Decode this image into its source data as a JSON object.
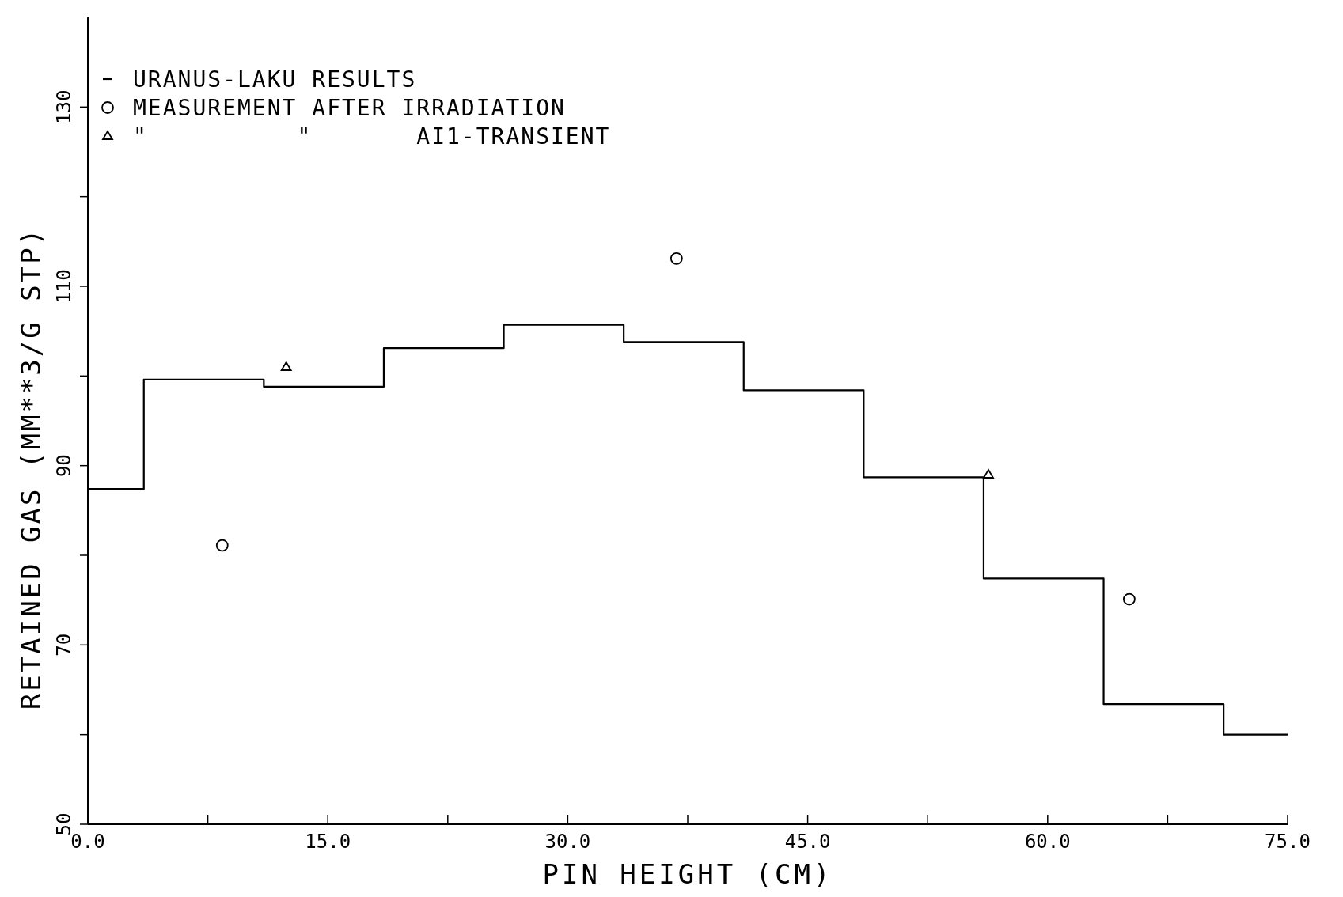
{
  "chart_data": {
    "type": "step",
    "xlabel": "PIN HEIGHT (CM)",
    "ylabel": "RETAINED GAS (MM**3/G STP)",
    "xlim": [
      0,
      75
    ],
    "ylim": [
      50,
      140
    ],
    "xticks": [
      {
        "value": 0,
        "label": "0.0"
      },
      {
        "value": 7.5,
        "label": null
      },
      {
        "value": 15,
        "label": "15.0"
      },
      {
        "value": 22.5,
        "label": null
      },
      {
        "value": 30,
        "label": "30.0"
      },
      {
        "value": 37.5,
        "label": null
      },
      {
        "value": 45,
        "label": "45.0"
      },
      {
        "value": 52.5,
        "label": null
      },
      {
        "value": 60,
        "label": "60.0"
      },
      {
        "value": 67.5,
        "label": null
      },
      {
        "value": 75,
        "label": "75.0"
      }
    ],
    "yticks": [
      50,
      {
        "value": 60,
        "label": null
      },
      70,
      {
        "value": 80,
        "label": null
      },
      90,
      {
        "value": 100,
        "label": null
      },
      110,
      {
        "value": 120,
        "label": null
      },
      130
    ],
    "legend": "top left",
    "grid": false,
    "series": [
      {
        "name": "URANUS-LAKU RESULTS",
        "color": "#000000",
        "marker": "none",
        "x": [
          0,
          3.5,
          11,
          18.5,
          26,
          33.5,
          41,
          48.5,
          56,
          63.5,
          71,
          75
        ],
        "values": [
          87.4,
          99.6,
          98.8,
          103.1,
          105.7,
          103.8,
          98.4,
          88.7,
          77.4,
          63.4,
          60.0,
          60.0
        ]
      },
      {
        "name": "MEASUREMENT AFTER IRRADIATION",
        "type": "scatter",
        "color": "#000000",
        "marker": "circle",
        "x": [
          8.4,
          36.8,
          65.1
        ],
        "values": [
          81.1,
          113.1,
          75.1
        ]
      },
      {
        "name": "\"          \"       AI1-TRANSIENT",
        "type": "scatter",
        "color": "#000000",
        "marker": "triangle",
        "x": [
          12.4,
          56.3
        ],
        "values": [
          101.0,
          89.0
        ]
      }
    ]
  }
}
